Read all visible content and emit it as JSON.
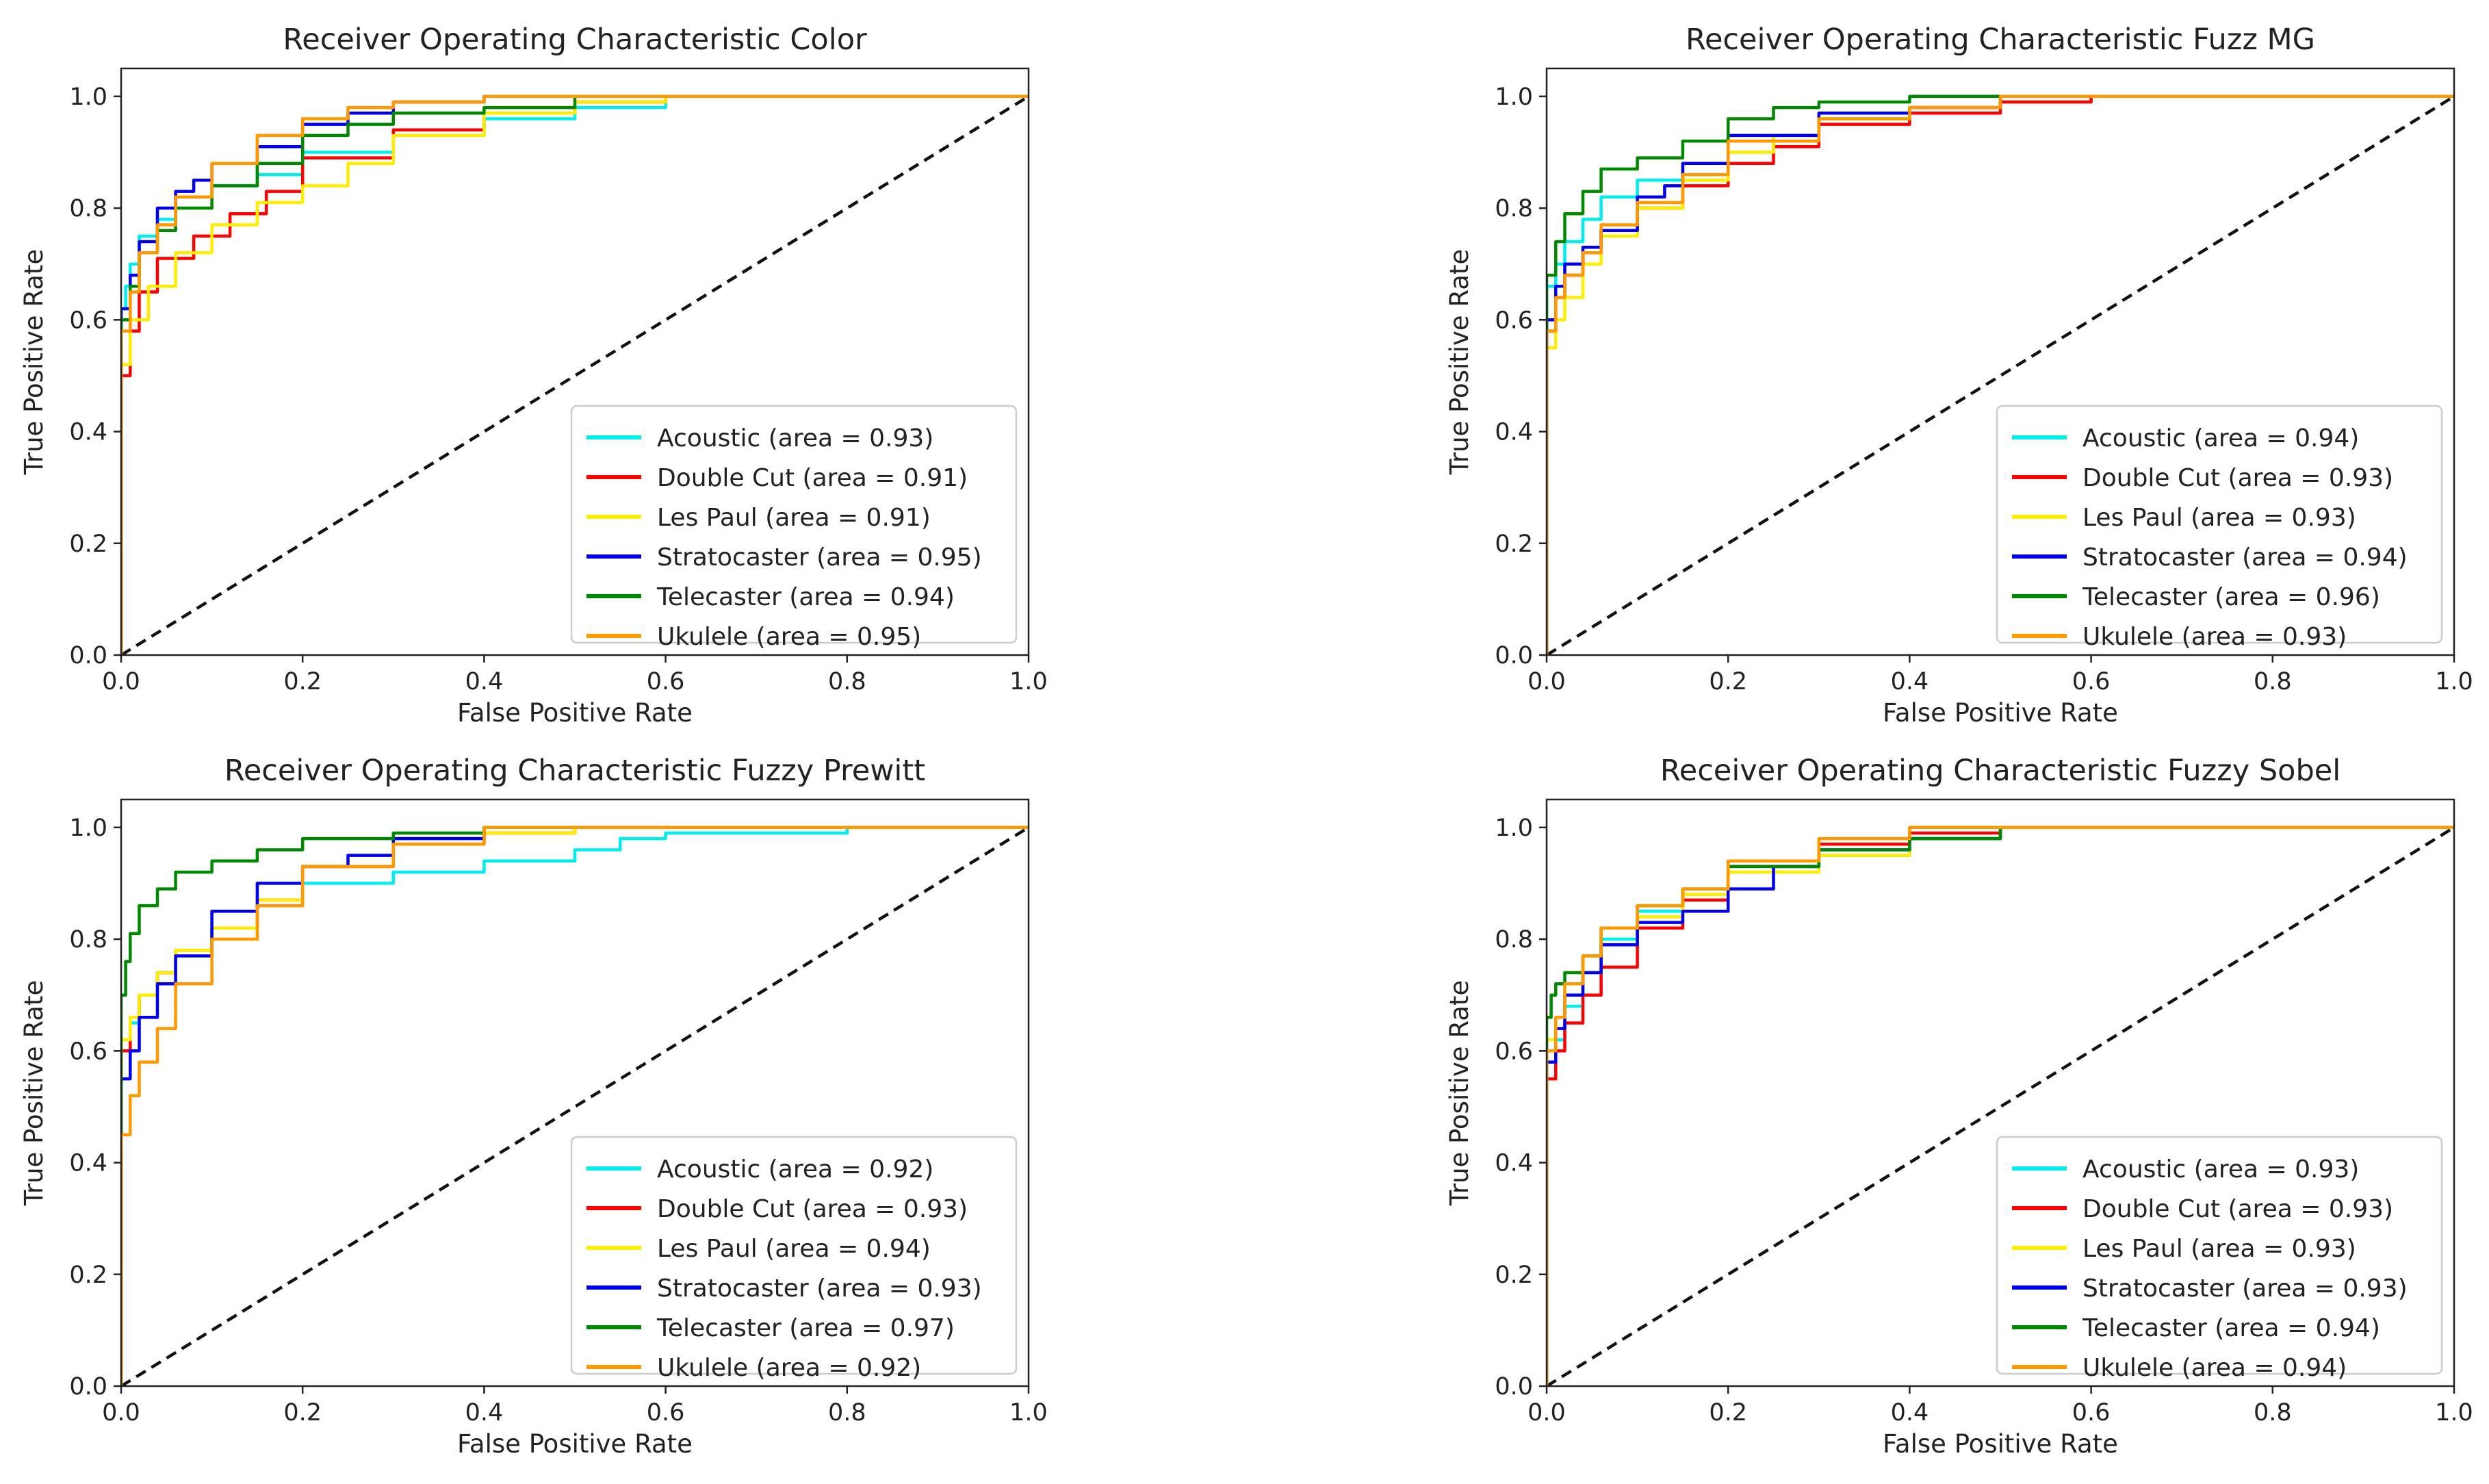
{
  "chart_data": [
    {
      "type": "line",
      "title": "Receiver Operating Characteristic Color",
      "xlabel": "False Positive Rate",
      "ylabel": "True Positive Rate",
      "xlim": [
        0,
        1
      ],
      "ylim": [
        0,
        1.05
      ],
      "xticks": [
        "0.0",
        "0.2",
        "0.4",
        "0.6",
        "0.8",
        "1.0"
      ],
      "yticks": [
        "0.0",
        "0.2",
        "0.4",
        "0.6",
        "0.8",
        "1.0"
      ],
      "legend_position": "lower-right",
      "series": [
        {
          "name": "Acoustic",
          "label": "Acoustic (area = 0.93)",
          "auc": 0.93,
          "color": "#00eeee",
          "x": [
            0,
            0,
            0.005,
            0.01,
            0.02,
            0.04,
            0.06,
            0.1,
            0.15,
            0.2,
            0.3,
            0.4,
            0.5,
            0.6,
            0.8,
            1.0
          ],
          "y": [
            0,
            0.45,
            0.62,
            0.66,
            0.7,
            0.75,
            0.78,
            0.82,
            0.84,
            0.86,
            0.9,
            0.93,
            0.96,
            0.98,
            1.0,
            1.0
          ]
        },
        {
          "name": "Double Cut",
          "label": "Double Cut (area = 0.91)",
          "auc": 0.91,
          "color": "#ff0000",
          "x": [
            0,
            0,
            0.01,
            0.02,
            0.04,
            0.08,
            0.12,
            0.16,
            0.2,
            0.3,
            0.4,
            0.5,
            0.6,
            0.78,
            0.8,
            1.0
          ],
          "y": [
            0,
            0.35,
            0.5,
            0.58,
            0.65,
            0.71,
            0.75,
            0.79,
            0.83,
            0.89,
            0.94,
            0.97,
            0.99,
            1.0,
            1.0,
            1.0
          ]
        },
        {
          "name": "Les Paul",
          "label": "Les Paul (area = 0.91)",
          "auc": 0.91,
          "color": "#ffee00",
          "x": [
            0,
            0,
            0.01,
            0.03,
            0.06,
            0.1,
            0.15,
            0.2,
            0.25,
            0.3,
            0.4,
            0.5,
            0.6,
            0.8,
            1.0
          ],
          "y": [
            0,
            0.4,
            0.52,
            0.6,
            0.66,
            0.72,
            0.77,
            0.81,
            0.84,
            0.88,
            0.93,
            0.97,
            0.99,
            1.0,
            1.0
          ]
        },
        {
          "name": "Stratocaster",
          "label": "Stratocaster (area = 0.95)",
          "auc": 0.95,
          "color": "#0000ee",
          "x": [
            0,
            0,
            0.01,
            0.02,
            0.04,
            0.06,
            0.08,
            0.1,
            0.15,
            0.2,
            0.25,
            0.3,
            0.4,
            0.6,
            1.0
          ],
          "y": [
            0,
            0.5,
            0.62,
            0.68,
            0.74,
            0.8,
            0.83,
            0.85,
            0.88,
            0.91,
            0.95,
            0.97,
            0.99,
            1.0,
            1.0
          ]
        },
        {
          "name": "Telecaster",
          "label": "Telecaster (area = 0.94)",
          "auc": 0.94,
          "color": "#008800",
          "x": [
            0,
            0,
            0.01,
            0.02,
            0.04,
            0.06,
            0.1,
            0.15,
            0.2,
            0.25,
            0.3,
            0.4,
            0.5,
            0.6,
            1.0
          ],
          "y": [
            0,
            0.5,
            0.6,
            0.66,
            0.72,
            0.76,
            0.8,
            0.84,
            0.88,
            0.93,
            0.95,
            0.97,
            0.98,
            1.0,
            1.0
          ]
        },
        {
          "name": "Ukulele",
          "label": "Ukulele (area = 0.95)",
          "auc": 0.95,
          "color": "#ff9900",
          "x": [
            0,
            0,
            0.01,
            0.02,
            0.04,
            0.06,
            0.1,
            0.15,
            0.2,
            0.25,
            0.3,
            0.4,
            0.5,
            1.0
          ],
          "y": [
            0,
            0.45,
            0.58,
            0.65,
            0.72,
            0.77,
            0.82,
            0.88,
            0.93,
            0.96,
            0.98,
            0.99,
            1.0,
            1.0
          ]
        }
      ]
    },
    {
      "type": "line",
      "title": "Receiver Operating Characteristic Fuzz MG",
      "xlabel": "False Positive Rate",
      "ylabel": "True Positive Rate",
      "xlim": [
        0,
        1
      ],
      "ylim": [
        0,
        1.05
      ],
      "xticks": [
        "0.0",
        "0.2",
        "0.4",
        "0.6",
        "0.8",
        "1.0"
      ],
      "yticks": [
        "0.0",
        "0.2",
        "0.4",
        "0.6",
        "0.8",
        "1.0"
      ],
      "legend_position": "lower-right",
      "series": [
        {
          "name": "Acoustic",
          "label": "Acoustic (area = 0.94)",
          "auc": 0.94,
          "color": "#00eeee",
          "x": [
            0,
            0,
            0.01,
            0.02,
            0.04,
            0.06,
            0.1,
            0.15,
            0.2,
            0.25,
            0.3,
            0.4,
            0.5,
            0.6,
            0.77,
            1.0
          ],
          "y": [
            0,
            0.55,
            0.66,
            0.7,
            0.74,
            0.78,
            0.82,
            0.85,
            0.88,
            0.9,
            0.93,
            0.96,
            0.98,
            0.99,
            1.0,
            1.0
          ]
        },
        {
          "name": "Double Cut",
          "label": "Double Cut (area = 0.93)",
          "auc": 0.93,
          "color": "#ff0000",
          "x": [
            0,
            0,
            0.01,
            0.02,
            0.04,
            0.06,
            0.1,
            0.15,
            0.2,
            0.25,
            0.3,
            0.4,
            0.5,
            0.6,
            1.0
          ],
          "y": [
            0,
            0.4,
            0.58,
            0.64,
            0.68,
            0.72,
            0.76,
            0.8,
            0.84,
            0.88,
            0.91,
            0.95,
            0.97,
            0.99,
            1.0
          ]
        },
        {
          "name": "Les Paul",
          "label": "Les Paul (area = 0.93)",
          "auc": 0.93,
          "color": "#ffee00",
          "x": [
            0,
            0,
            0.01,
            0.02,
            0.04,
            0.06,
            0.1,
            0.15,
            0.2,
            0.25,
            0.3,
            0.4,
            0.5,
            1.0
          ],
          "y": [
            0,
            0.4,
            0.55,
            0.6,
            0.64,
            0.7,
            0.75,
            0.8,
            0.85,
            0.9,
            0.93,
            0.96,
            0.98,
            1.0
          ]
        },
        {
          "name": "Stratocaster",
          "label": "Stratocaster (area = 0.94)",
          "auc": 0.94,
          "color": "#0000ee",
          "x": [
            0,
            0,
            0.01,
            0.02,
            0.04,
            0.06,
            0.1,
            0.13,
            0.15,
            0.2,
            0.3,
            0.4,
            0.5,
            0.7,
            1.0
          ],
          "y": [
            0,
            0.45,
            0.6,
            0.66,
            0.7,
            0.73,
            0.76,
            0.82,
            0.84,
            0.88,
            0.93,
            0.97,
            0.98,
            1.0,
            1.0
          ]
        },
        {
          "name": "Telecaster",
          "label": "Telecaster (area = 0.96)",
          "auc": 0.96,
          "color": "#008800",
          "x": [
            0,
            0,
            0.01,
            0.02,
            0.04,
            0.06,
            0.1,
            0.15,
            0.2,
            0.25,
            0.3,
            0.4,
            0.5,
            1.0
          ],
          "y": [
            0,
            0.55,
            0.68,
            0.74,
            0.79,
            0.83,
            0.87,
            0.89,
            0.92,
            0.96,
            0.98,
            0.99,
            1.0,
            1.0
          ]
        },
        {
          "name": "Ukulele",
          "label": "Ukulele (area = 0.93)",
          "auc": 0.93,
          "color": "#ff9900",
          "x": [
            0,
            0,
            0.01,
            0.02,
            0.04,
            0.06,
            0.1,
            0.15,
            0.2,
            0.3,
            0.4,
            0.5,
            0.6,
            1.0
          ],
          "y": [
            0,
            0.45,
            0.58,
            0.64,
            0.68,
            0.72,
            0.77,
            0.81,
            0.86,
            0.92,
            0.96,
            0.98,
            1.0,
            1.0
          ]
        }
      ]
    },
    {
      "type": "line",
      "title": "Receiver Operating Characteristic Fuzzy Prewitt",
      "xlabel": "False Positive Rate",
      "ylabel": "True Positive Rate",
      "xlim": [
        0,
        1
      ],
      "ylim": [
        0,
        1.05
      ],
      "xticks": [
        "0.0",
        "0.2",
        "0.4",
        "0.6",
        "0.8",
        "1.0"
      ],
      "yticks": [
        "0.0",
        "0.2",
        "0.4",
        "0.6",
        "0.8",
        "1.0"
      ],
      "legend_position": "lower-right",
      "series": [
        {
          "name": "Acoustic",
          "label": "Acoustic (area = 0.92)",
          "auc": 0.92,
          "color": "#00eeee",
          "x": [
            0,
            0,
            0.01,
            0.02,
            0.04,
            0.06,
            0.1,
            0.15,
            0.2,
            0.3,
            0.4,
            0.5,
            0.55,
            0.6,
            0.8,
            0.9,
            1.0
          ],
          "y": [
            0,
            0.45,
            0.6,
            0.65,
            0.7,
            0.74,
            0.78,
            0.82,
            0.86,
            0.9,
            0.92,
            0.94,
            0.96,
            0.98,
            0.99,
            1.0,
            1.0
          ]
        },
        {
          "name": "Double Cut",
          "label": "Double Cut (area = 0.93)",
          "auc": 0.93,
          "color": "#ff0000",
          "x": [
            0,
            0,
            0.01,
            0.02,
            0.04,
            0.06,
            0.1,
            0.15,
            0.2,
            0.3,
            0.4,
            0.5,
            1.0
          ],
          "y": [
            0,
            0.45,
            0.6,
            0.66,
            0.7,
            0.74,
            0.78,
            0.82,
            0.87,
            0.93,
            0.97,
            0.99,
            1.0
          ]
        },
        {
          "name": "Les Paul",
          "label": "Les Paul (area = 0.94)",
          "auc": 0.94,
          "color": "#ffee00",
          "x": [
            0,
            0,
            0.01,
            0.02,
            0.04,
            0.06,
            0.1,
            0.15,
            0.2,
            0.3,
            0.4,
            0.5,
            1.0
          ],
          "y": [
            0,
            0.5,
            0.62,
            0.66,
            0.7,
            0.74,
            0.78,
            0.82,
            0.87,
            0.93,
            0.97,
            0.99,
            1.0
          ]
        },
        {
          "name": "Stratocaster",
          "label": "Stratocaster (area = 0.93)",
          "auc": 0.93,
          "color": "#0000ee",
          "x": [
            0,
            0,
            0.01,
            0.02,
            0.04,
            0.06,
            0.1,
            0.15,
            0.2,
            0.25,
            0.3,
            0.4,
            0.5,
            1.0
          ],
          "y": [
            0,
            0.4,
            0.55,
            0.6,
            0.66,
            0.72,
            0.77,
            0.85,
            0.9,
            0.93,
            0.95,
            0.98,
            1.0,
            1.0
          ]
        },
        {
          "name": "Telecaster",
          "label": "Telecaster (area = 0.97)",
          "auc": 0.97,
          "color": "#008800",
          "x": [
            0,
            0,
            0.005,
            0.01,
            0.02,
            0.04,
            0.06,
            0.1,
            0.15,
            0.2,
            0.3,
            0.4,
            0.5,
            1.0
          ],
          "y": [
            0,
            0.55,
            0.7,
            0.76,
            0.81,
            0.86,
            0.89,
            0.92,
            0.94,
            0.96,
            0.98,
            0.99,
            1.0,
            1.0
          ]
        },
        {
          "name": "Ukulele",
          "label": "Ukulele (area = 0.92)",
          "auc": 0.92,
          "color": "#ff9900",
          "x": [
            0,
            0,
            0.01,
            0.02,
            0.04,
            0.06,
            0.1,
            0.15,
            0.2,
            0.3,
            0.4,
            0.5,
            1.0
          ],
          "y": [
            0,
            0.3,
            0.45,
            0.52,
            0.58,
            0.64,
            0.72,
            0.8,
            0.86,
            0.93,
            0.97,
            1.0,
            1.0
          ]
        }
      ]
    },
    {
      "type": "line",
      "title": "Receiver Operating Characteristic Fuzzy Sobel",
      "xlabel": "False Positive Rate",
      "ylabel": "True Positive Rate",
      "xlim": [
        0,
        1
      ],
      "ylim": [
        0,
        1.05
      ],
      "xticks": [
        "0.0",
        "0.2",
        "0.4",
        "0.6",
        "0.8",
        "1.0"
      ],
      "yticks": [
        "0.0",
        "0.2",
        "0.4",
        "0.6",
        "0.8",
        "1.0"
      ],
      "legend_position": "lower-right",
      "series": [
        {
          "name": "Acoustic",
          "label": "Acoustic (area = 0.93)",
          "auc": 0.93,
          "color": "#00eeee",
          "x": [
            0,
            0,
            0.01,
            0.02,
            0.04,
            0.06,
            0.1,
            0.15,
            0.2,
            0.3,
            0.4,
            0.5,
            0.6,
            1.0
          ],
          "y": [
            0,
            0.4,
            0.55,
            0.62,
            0.68,
            0.74,
            0.8,
            0.85,
            0.88,
            0.92,
            0.95,
            0.98,
            1.0,
            1.0
          ]
        },
        {
          "name": "Double Cut",
          "label": "Double Cut (area = 0.93)",
          "auc": 0.93,
          "color": "#ff0000",
          "x": [
            0,
            0,
            0.01,
            0.02,
            0.04,
            0.06,
            0.1,
            0.15,
            0.2,
            0.3,
            0.4,
            0.5,
            0.62,
            1.0
          ],
          "y": [
            0,
            0.4,
            0.55,
            0.6,
            0.65,
            0.7,
            0.75,
            0.82,
            0.87,
            0.93,
            0.97,
            0.99,
            1.0,
            1.0
          ]
        },
        {
          "name": "Les Paul",
          "label": "Les Paul (area = 0.93)",
          "auc": 0.93,
          "color": "#ffee00",
          "x": [
            0,
            0,
            0.01,
            0.02,
            0.04,
            0.06,
            0.1,
            0.15,
            0.2,
            0.3,
            0.4,
            0.5,
            0.72,
            1.0
          ],
          "y": [
            0,
            0.5,
            0.62,
            0.66,
            0.7,
            0.74,
            0.79,
            0.84,
            0.88,
            0.92,
            0.95,
            0.98,
            1.0,
            1.0
          ]
        },
        {
          "name": "Stratocaster",
          "label": "Stratocaster (area = 0.93)",
          "auc": 0.93,
          "color": "#0000ee",
          "x": [
            0,
            0,
            0.01,
            0.02,
            0.04,
            0.06,
            0.1,
            0.15,
            0.2,
            0.25,
            0.3,
            0.4,
            0.5,
            0.6,
            1.0
          ],
          "y": [
            0,
            0.45,
            0.58,
            0.64,
            0.7,
            0.74,
            0.79,
            0.83,
            0.85,
            0.89,
            0.93,
            0.96,
            0.98,
            1.0,
            1.0
          ]
        },
        {
          "name": "Telecaster",
          "label": "Telecaster (area = 0.94)",
          "auc": 0.94,
          "color": "#008800",
          "x": [
            0,
            0,
            0.005,
            0.01,
            0.02,
            0.04,
            0.06,
            0.1,
            0.15,
            0.2,
            0.3,
            0.4,
            0.5,
            0.6,
            1.0
          ],
          "y": [
            0,
            0.55,
            0.66,
            0.7,
            0.72,
            0.74,
            0.77,
            0.82,
            0.86,
            0.89,
            0.93,
            0.96,
            0.98,
            1.0,
            1.0
          ]
        },
        {
          "name": "Ukulele",
          "label": "Ukulele (area = 0.94)",
          "auc": 0.94,
          "color": "#ff9900",
          "x": [
            0,
            0,
            0.01,
            0.02,
            0.04,
            0.06,
            0.1,
            0.15,
            0.2,
            0.3,
            0.4,
            0.5,
            1.0
          ],
          "y": [
            0,
            0.45,
            0.6,
            0.66,
            0.72,
            0.77,
            0.82,
            0.86,
            0.89,
            0.94,
            0.98,
            1.0,
            1.0
          ]
        }
      ]
    }
  ]
}
